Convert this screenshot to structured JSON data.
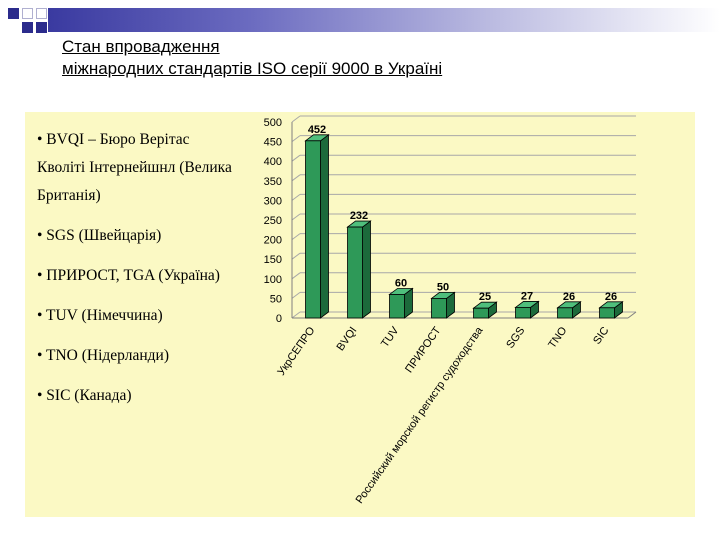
{
  "slide": {
    "title_lines": [
      "Стан впровадження",
      "міжнародних стандартів ISO серії 9000 в Україні"
    ],
    "bullets": [
      "• BVQI – Бюро Верітас Кволіті Інтернейшнл (Велика Британія)",
      "• SGS (Швейцарія)",
      "• ПРИРОСТ, TGA (Україна)",
      "• TUV (Німеччина)",
      "• TNO (Нідерланди)",
      "• SIC (Канада)"
    ]
  },
  "colors": {
    "bar_front": "#2e9958",
    "bar_side": "#1c6a3b",
    "bar_top": "#4fbf7c",
    "panel_bg": "#fbf9c4",
    "header_dark": "#2b2b8c"
  },
  "chart_data": {
    "type": "bar",
    "categories": [
      "УкрСЕПРО",
      "BVQI",
      "TUV",
      "ПРИРОСТ",
      "Российский морской регистр судоходства",
      "SGS",
      "TNO",
      "SIC"
    ],
    "values": [
      452,
      232,
      60,
      50,
      25,
      27,
      26,
      26
    ],
    "data_labels": [
      "452",
      "232",
      "60",
      "50",
      "25",
      "27",
      "26",
      "26"
    ],
    "yticks": [
      "0",
      "50",
      "100",
      "150",
      "200",
      "250",
      "300",
      "350",
      "400",
      "450",
      "500"
    ],
    "ylim": [
      0,
      500
    ],
    "grid": true
  }
}
